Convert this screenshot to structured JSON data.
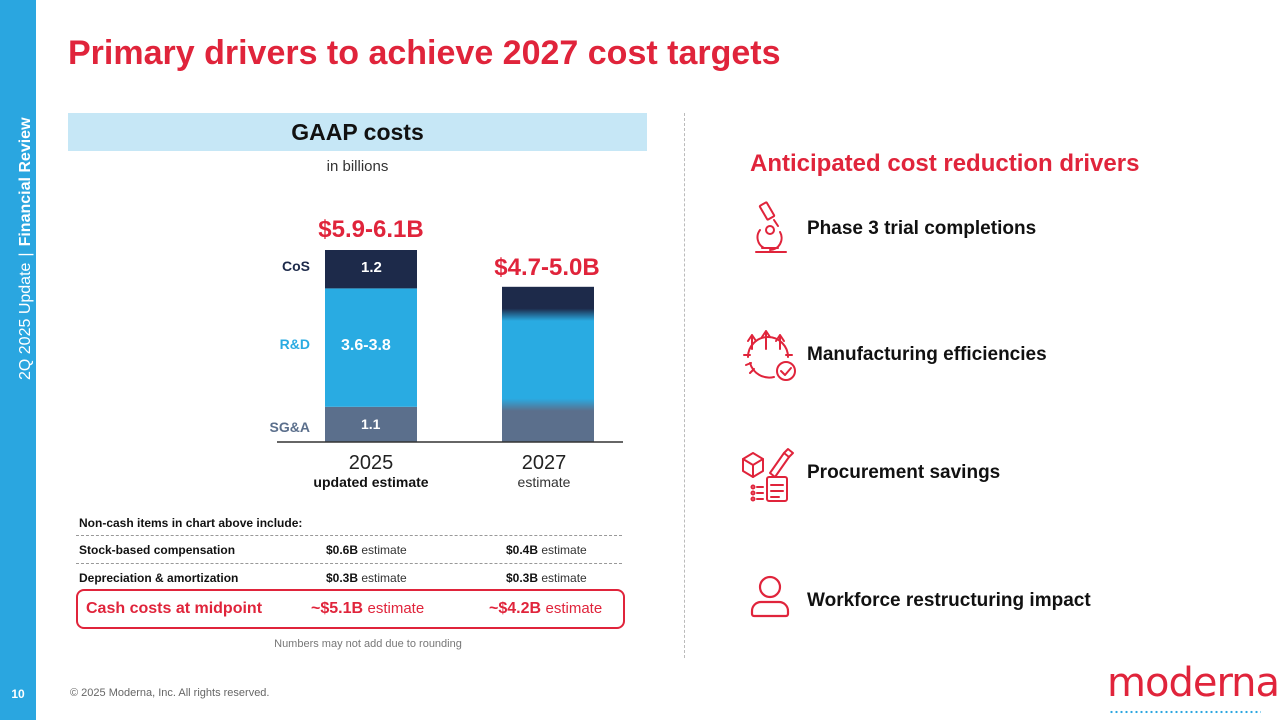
{
  "sidebar": {
    "section_light": "2Q 2025 Update",
    "separator": "|",
    "section_bold": "Financial Review",
    "page_number": "10"
  },
  "title": "Primary drivers to achieve 2027 cost targets",
  "gaap": {
    "header": "GAAP costs",
    "unit": "in billions"
  },
  "chart_data": {
    "type": "bar",
    "stacked": true,
    "categories": [
      "2025",
      "2027"
    ],
    "category_sublabels": [
      "updated estimate",
      "estimate"
    ],
    "series": [
      {
        "name": "SG&A",
        "values": [
          1.1,
          null
        ]
      },
      {
        "name": "R&D",
        "values": [
          "3.6-3.8",
          null
        ]
      },
      {
        "name": "CoS",
        "values": [
          1.2,
          null
        ]
      }
    ],
    "totals": [
      "$5.9-6.1B",
      "$4.7-5.0B"
    ],
    "colors": {
      "CoS": "#1d2a4a",
      "R&D": "#29abe2",
      "SG&A": "#5b6f8c",
      "total": "#e0243b"
    }
  },
  "noncash": {
    "header": "Non-cash items in chart above include:",
    "rows": [
      {
        "label": "Stock-based compensation",
        "v2025": "$0.6B",
        "v2027": "$0.4B",
        "suffix": "estimate"
      },
      {
        "label": "Depreciation & amortization",
        "v2025": "$0.3B",
        "v2027": "$0.3B",
        "suffix": "estimate"
      }
    ],
    "cash": {
      "label": "Cash costs at midpoint",
      "v2025": "~$5.1B",
      "v2027": "~$4.2B",
      "suffix": "estimate"
    },
    "note": "Numbers may not add due to rounding"
  },
  "drivers": {
    "title": "Anticipated cost reduction drivers",
    "items": [
      {
        "label": "Phase 3 trial completions",
        "icon": "microscope-icon"
      },
      {
        "label": "Manufacturing efficiencies",
        "icon": "manufacturing-gear-icon"
      },
      {
        "label": "Procurement savings",
        "icon": "procurement-icon"
      },
      {
        "label": "Workforce restructuring impact",
        "icon": "person-icon"
      }
    ]
  },
  "footer": {
    "copyright": "© 2025 Moderna, Inc. All rights reserved.",
    "logo": "moderna"
  },
  "colors": {
    "accent": "#e0243b",
    "sidebar": "#2aa6e0",
    "header_fill": "#c6e7f6"
  }
}
